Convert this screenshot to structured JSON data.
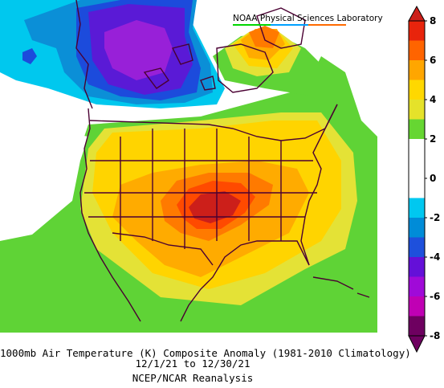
{
  "credit": {
    "text": "NOAA Physical Sciences Laboratory",
    "underline_colors": [
      "#00d600",
      "#00a0ff",
      "#ff6a00"
    ]
  },
  "caption": {
    "line1": "1000mb Air Temperature (K) Composite Anomaly (1981-2010 Climatology)",
    "line2": "12/1/21 to 12/30/21",
    "line3": "NCEP/NCAR Reanalysis"
  },
  "colorbar": {
    "tick_labels": [
      "8",
      "6",
      "4",
      "2",
      "0",
      "-2",
      "-4",
      "-6",
      "-8"
    ],
    "bands": [
      {
        "range": "7 to 8",
        "color": "#e8240c"
      },
      {
        "range": "6 to 7",
        "color": "#ff6400"
      },
      {
        "range": "5 to 6",
        "color": "#ffa600"
      },
      {
        "range": "4 to 5",
        "color": "#ffd800"
      },
      {
        "range": "3 to 4",
        "color": "#e5e22a"
      },
      {
        "range": "2 to 3",
        "color": "#66d632"
      },
      {
        "range": "1 to 2",
        "color": "#ffffff"
      },
      {
        "range": "0 to 1",
        "color": "#ffffff"
      },
      {
        "range": "-1 to 0",
        "color": "#ffffff"
      },
      {
        "range": "-2 to -1",
        "color": "#00c8f0"
      },
      {
        "range": "-3 to -2",
        "color": "#008cd8"
      },
      {
        "range": "-4 to -3",
        "color": "#1e50dc"
      },
      {
        "range": "-5 to -4",
        "color": "#6410d8"
      },
      {
        "range": "-6 to -5",
        "color": "#a00ad8"
      },
      {
        "range": "-7 to -6",
        "color": "#c000b4"
      },
      {
        "range": "-8 to -7",
        "color": "#6e0060"
      }
    ]
  },
  "map": {
    "field": "1000mb air temperature anomaly",
    "units": "K",
    "anomaly_colors": {
      "strong_warm": "#cc1f1a",
      "warm_7": "#ff4a00",
      "warm_6": "#ff7a00",
      "warm_5": "#ffab00",
      "warm_4": "#ffd400",
      "warm_3": "#e4e236",
      "warm_2": "#5fd336",
      "neutral": "#ffffff",
      "cool_1": "#00c8ee",
      "cool_2": "#0b8fd7",
      "cool_3": "#1c4bdc",
      "cool_4": "#5a1ad6",
      "cool_5": "#9820d8"
    },
    "coastline_color": "#4a0032"
  }
}
